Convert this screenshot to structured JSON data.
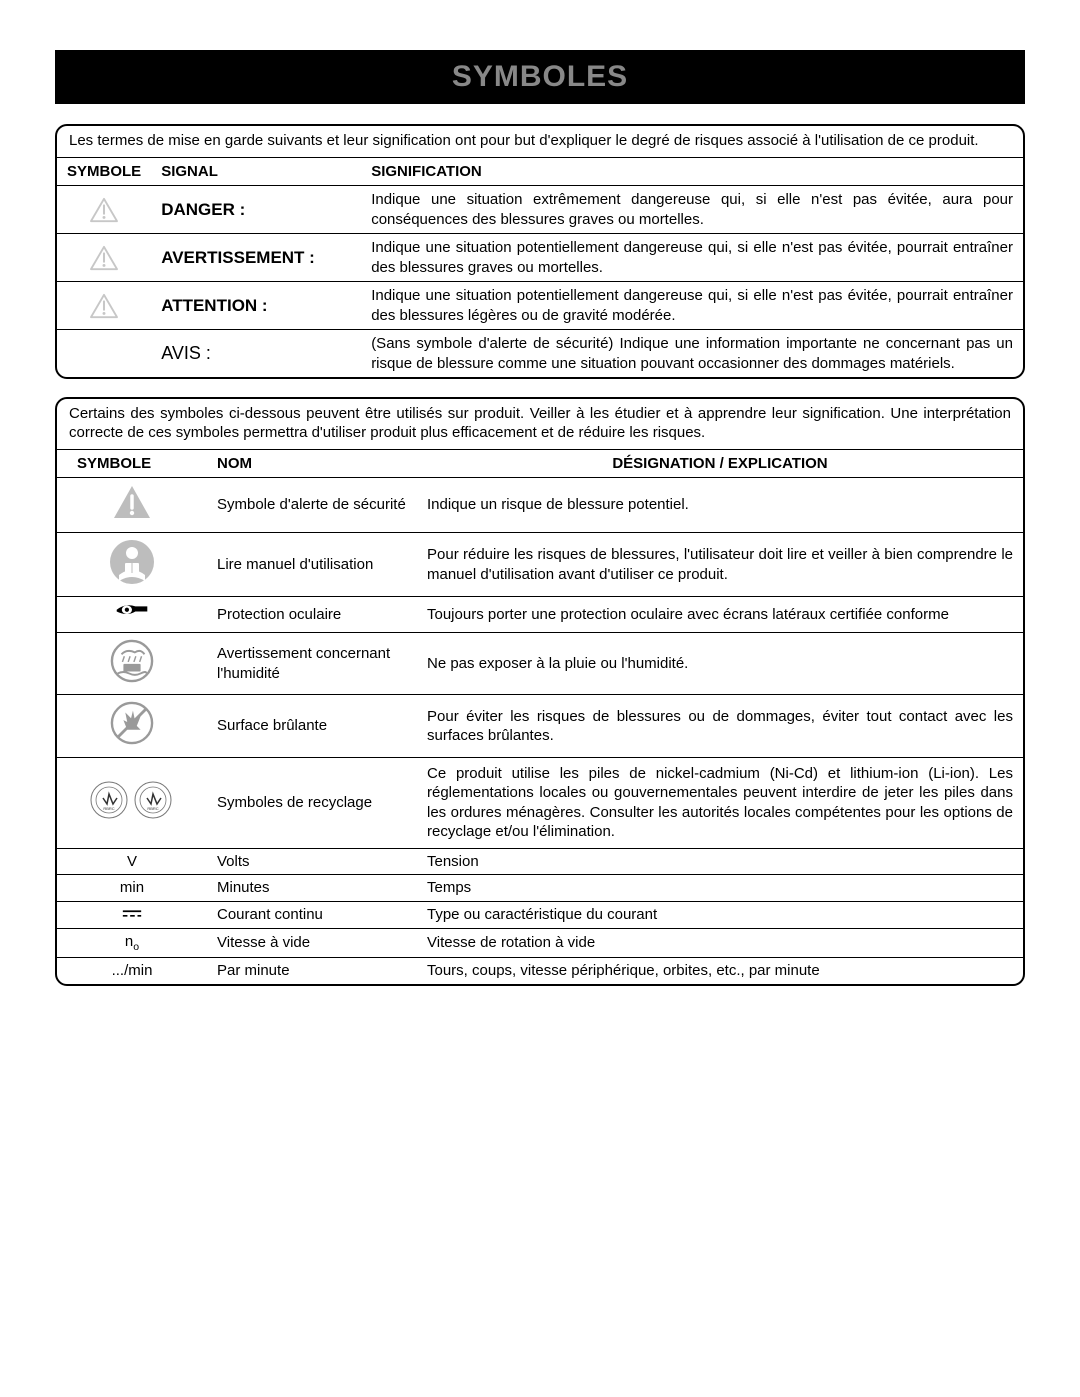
{
  "title": "SYMBOLES",
  "box1": {
    "intro": "Les termes de mise en garde suivants et leur signification ont pour but d'expliquer le degré de risques associé à l'utilisation de ce produit.",
    "headers": {
      "symbole": "SYMBOLE",
      "signal": "SIGNAL",
      "signification": "SIGNIFICATION"
    },
    "rows": [
      {
        "icon": "alert-triangle",
        "signal": "DANGER :",
        "bold": true,
        "desc": "Indique une situation extrêmement dangereuse qui, si elle n'est pas évitée, aura pour conséquences des blessures graves ou mortelles."
      },
      {
        "icon": "alert-triangle",
        "signal": "AVERTISSEMENT :",
        "bold": true,
        "desc": "Indique une situation potentiellement dangereuse qui, si elle n'est pas évitée, pourrait entraîner des blessures graves ou mortelles."
      },
      {
        "icon": "alert-triangle",
        "signal": "ATTENTION :",
        "bold": true,
        "desc": "Indique une situation potentiellement dangereuse qui, si elle n'est pas évitée, pourrait entraîner des blessures légères ou de gravité modérée."
      },
      {
        "icon": "",
        "signal": "AVIS :",
        "bold": false,
        "desc": "(Sans symbole d'alerte de sécurité) Indique une information importante ne concernant pas un risque de blessure comme une situation pouvant occasionner des dommages matériels."
      }
    ]
  },
  "box2": {
    "intro": "Certains des symboles ci-dessous peuvent être utilisés sur produit. Veiller à les étudier et à apprendre leur signification. Une interprétation correcte de ces symboles permettra d'utiliser produit plus efficacement et de réduire les risques.",
    "headers": {
      "symbole": "SYMBOLE",
      "nom": "NOM",
      "designation": "DÉSIGNATION / EXPLICATION"
    },
    "rows": [
      {
        "icon": "alert-triangle-gray",
        "nom": "Symbole d'alerte de sécurité",
        "desc": "Indique un risque de blessure potentiel."
      },
      {
        "icon": "read-manual",
        "nom": "Lire manuel d'utilisation",
        "desc": "Pour réduire les risques de blessures, l'utilisateur doit lire et veiller à bien comprendre le manuel d'utilisation avant d'utiliser ce produit."
      },
      {
        "icon": "eye-protection",
        "nom": "Protection oculaire",
        "desc": "Toujours porter une protection oculaire avec écrans latéraux certifiée conforme"
      },
      {
        "icon": "wet-warning",
        "nom": "Avertissement concernant l'humidité",
        "desc": "Ne pas exposer à la pluie ou l'humidité."
      },
      {
        "icon": "hot-surface",
        "nom": "Surface brûlante",
        "desc": "Pour éviter les risques de blessures ou de dommages, éviter tout contact avec les surfaces brûlantes."
      },
      {
        "icon": "recycle",
        "nom": "Symboles de recyclage",
        "desc": "Ce produit utilise les piles de nickel-cadmium (Ni-Cd) et lithium-ion (Li-ion). Les réglementations locales ou gouvernementales peuvent interdire de jeter les piles dans les ordures ménagères. Consulter les autorités locales compétentes pour les options de recyclage et/ou l'élimination."
      },
      {
        "icon": "text:V",
        "nom": "Volts",
        "desc": "Tension",
        "small": true
      },
      {
        "icon": "text:min",
        "nom": "Minutes",
        "desc": "Temps",
        "small": true
      },
      {
        "icon": "dc",
        "nom": "Courant continu",
        "desc": "Type ou caractéristique du courant",
        "small": true
      },
      {
        "icon": "n0",
        "nom": "Vitesse à vide",
        "desc": "Vitesse de rotation à vide",
        "small": true
      },
      {
        "icon": "text:.../min",
        "nom": "Par minute",
        "desc": "Tours, coups, vitesse périphérique, orbites, etc., par minute",
        "small": true
      }
    ]
  },
  "colors": {
    "title_bg": "#000000",
    "title_fg": "#888888",
    "border": "#000000",
    "icon_gray": "#bdbdbd",
    "icon_gray_dark": "#9a9a9a"
  }
}
